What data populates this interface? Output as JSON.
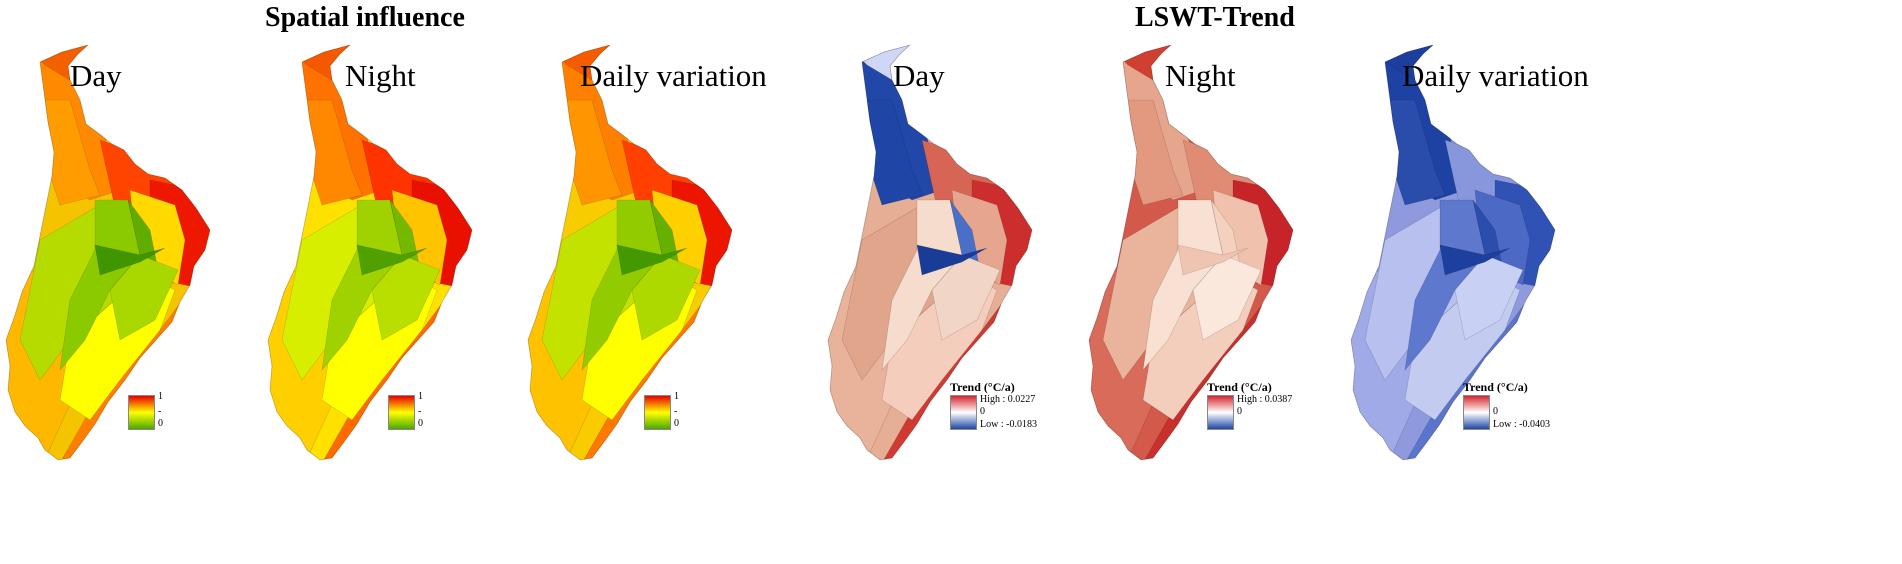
{
  "titles": {
    "left": "Spatial influence",
    "right": "LSWT-Trend"
  },
  "panels": [
    {
      "label": "Day",
      "scheme": "influence",
      "colors": {
        "outer": "#f5c400",
        "west": "#ffb800",
        "shoreA": "#ff7e00",
        "shoreB": "#f64a00",
        "north": "#ff8a00",
        "northTip": "#f36000",
        "nw": "#ff9d00",
        "east1": "#ff4400",
        "east2": "#ee1800",
        "ringW": "#b6db00",
        "ringS": "#ffff00",
        "ringE": "#ffd900",
        "inner1": "#8cca00",
        "inner2": "#60ad00",
        "inner3": "#a8d800",
        "inner4": "#3f9600"
      },
      "legend": {
        "max": "1",
        "min": "0",
        "mid": "-"
      }
    },
    {
      "label": "Night",
      "scheme": "influence",
      "colors": {
        "outer": "#ffe100",
        "west": "#ffd000",
        "shoreA": "#ff6a00",
        "shoreB": "#f44400",
        "north": "#ff7200",
        "northTip": "#f55800",
        "nw": "#ff8800",
        "east1": "#ff3300",
        "east2": "#ea1000",
        "ringW": "#d8ee00",
        "ringS": "#ffff00",
        "ringE": "#ffc400",
        "inner1": "#9fd200",
        "inner2": "#74b900",
        "inner3": "#b9df00",
        "inner4": "#4fa000"
      },
      "legend": {
        "max": "1",
        "min": "0",
        "mid": "-"
      }
    },
    {
      "label": "Daily variation",
      "scheme": "influence",
      "colors": {
        "outer": "#f8cc00",
        "west": "#ffc200",
        "shoreA": "#ff7800",
        "shoreB": "#f54c00",
        "north": "#ff8000",
        "northTip": "#f55c00",
        "nw": "#ff9500",
        "east1": "#ff4000",
        "east2": "#ec1500",
        "ringW": "#c4e200",
        "ringS": "#ffff00",
        "ringE": "#ffd000",
        "inner1": "#92cc00",
        "inner2": "#66b000",
        "inner3": "#aed900",
        "inner4": "#449800"
      },
      "legend": {
        "max": "1",
        "min": "0",
        "mid": "-"
      }
    },
    {
      "label": "Day",
      "scheme": "trend",
      "colors": {
        "outer": "#e6ae94",
        "west": "#e8b39a",
        "shoreA": "#d13a33",
        "shoreB": "#c52a2a",
        "north": "#2148a8",
        "northTip": "#d0d6f5",
        "nw": "#1f46a6",
        "east1": "#d66556",
        "east2": "#cc2e2e",
        "ringW": "#e0a58a",
        "ringS": "#f4cdbd",
        "ringE": "#e5a58e",
        "inner1": "#f6dccc",
        "inner2": "#4a6fc6",
        "inner3": "#f1d5c6",
        "inner4": "#1a3c99"
      },
      "legend": {
        "title": "Trend (°C/a)",
        "high": "High : 0.0227",
        "zero": "0",
        "low": "Low : -0.0183"
      }
    },
    {
      "label": "Night",
      "scheme": "trend",
      "colors": {
        "outer": "#d3594a",
        "west": "#d96b5a",
        "shoreA": "#c92f2c",
        "shoreB": "#c53b34",
        "north": "#e6a58d",
        "northTip": "#d04031",
        "nw": "#e2997f",
        "east1": "#e08c74",
        "east2": "#c7242a",
        "ringW": "#e9b39c",
        "ringS": "#f3cebd",
        "ringE": "#f0c2ae",
        "inner1": "#f8e0d2",
        "inner2": "#f4d0bf",
        "inner3": "#fbe8dd",
        "inner4": "#efc4b0"
      },
      "legend": {
        "title": "Trend (°C/a)",
        "high": "High : 0.0387",
        "zero": "0",
        "low": ""
      }
    },
    {
      "label": "Daily variation",
      "scheme": "trend",
      "colors": {
        "outer": "#8e99de",
        "west": "#a0aae6",
        "shoreA": "#5b74cc",
        "shoreB": "#3c5cc0",
        "north": "#1e42a3",
        "northTip": "#1c3f9e",
        "nw": "#2a4cab",
        "east1": "#8897dc",
        "east2": "#2f52b4",
        "ringW": "#b7c0ee",
        "ringS": "#c3cbf1",
        "ringE": "#4c69c5",
        "inner1": "#5d78cc",
        "inner2": "#2a4dae",
        "inner3": "#c8d0f3",
        "inner4": "#1d409f"
      },
      "legend": {
        "title": "Trend (°C/a)",
        "high": "",
        "zero": "0",
        "low": "Low : -0.0403"
      }
    }
  ]
}
